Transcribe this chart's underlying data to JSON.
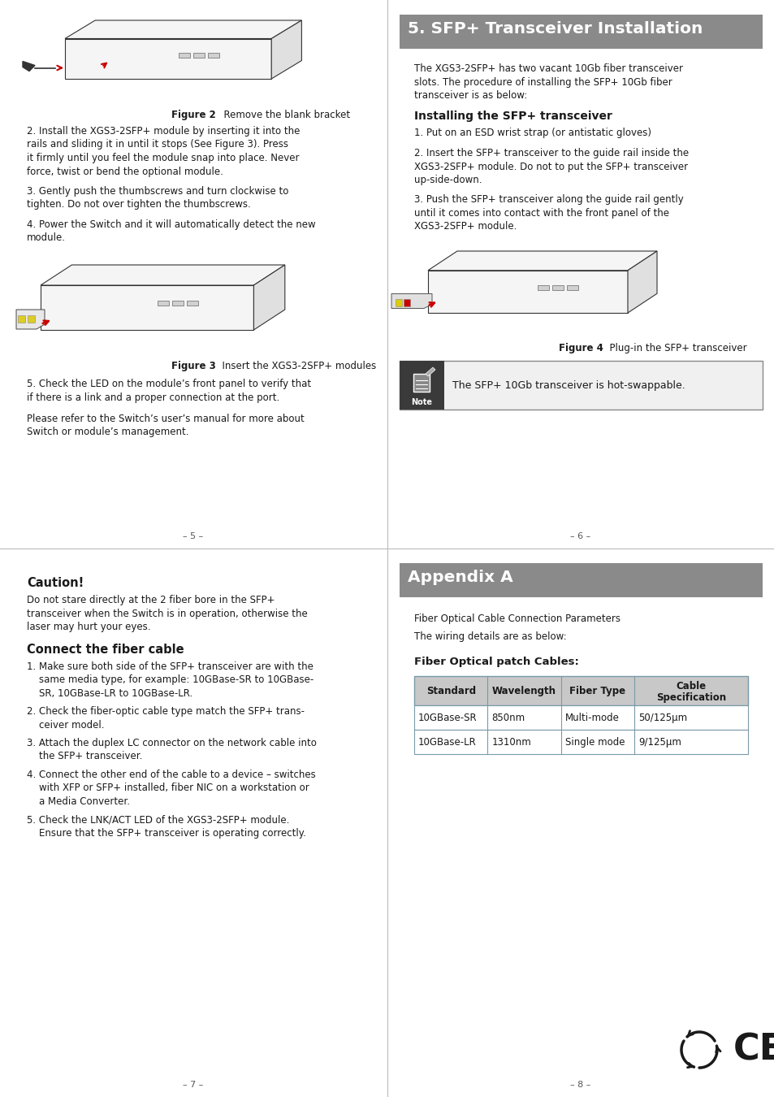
{
  "bg": "#ffffff",
  "text_color": "#1a1a1a",
  "gray_header_bg": "#8a8a8a",
  "gray_header_text": "#ffffff",
  "note_dark_bg": "#3a3a3a",
  "note_border": "#888888",
  "table_header_bg": "#c8c8c8",
  "table_border": "#7a9aaa",
  "divider_color": "#bbbbbb",
  "red_arrow": "#cc0000",
  "page5_content": {
    "fig2_caption_bold": "Figure 2",
    "fig2_caption_rest": "  Remove the blank bracket",
    "step2": "2. Install the XGS3-2SFP+ module by inserting it into the\n    rails and sliding it in until it stops (See Figure 3). Press\n    it firmly until you feel the module snap into place. Never\n    force, twist or bend the optional module.",
    "step3": "3. Gently push the thumbscrews and turn clockwise to\n    tighten. Do not over tighten the thumbscrews.",
    "step4": "4. Power the Switch and it will automatically detect the new\n    module.",
    "fig3_caption_bold": "Figure 3",
    "fig3_caption_rest": "  Insert the XGS3-2SFP+ modules",
    "step5": "5. Check the LED on the module’s front panel to verify that\n    if there is a link and a proper connection at the port.",
    "please_refer": "Please refer to the Switch’s user’s manual for more about\nSwitch or module’s management.",
    "page_num": "– 5 –"
  },
  "page6_content": {
    "section_title": "5. SFP+ Transceiver Installation",
    "intro": "The XGS3-2SFP+ has two vacant 10Gb fiber transceiver\nslots. The procedure of installing the SFP+ 10Gb fiber\ntransceiver is as below:",
    "sub_title": "Installing the SFP+ transceiver",
    "s1": "1. Put on an ESD wrist strap (or antistatic gloves)",
    "s2": "2. Insert the SFP+ transceiver to the guide rail inside the\n    XGS3-2SFP+ module. Do not to put the SFP+ transceiver\n    up-side-down.",
    "s3": "3. Push the SFP+ transceiver along the guide rail gently\n    until it comes into contact with the front panel of the\n    XGS3-2SFP+ module.",
    "fig4_caption_bold": "Figure 4",
    "fig4_caption_rest": "  Plug-in the SFP+ transceiver",
    "note_text": "The SFP+ 10Gb transceiver is hot-swappable.",
    "page_num": "– 6 –"
  },
  "page7_content": {
    "caution_title": "Caution!",
    "caution_text": "Do not stare directly at the 2 fiber bore in the SFP+\ntransceiver when the Switch is in operation, otherwise the\nlaser may hurt your eyes.",
    "connect_title": "Connect the fiber cable",
    "c1": "1. Make sure both side of the SFP+ transceiver are with the\n    same media type, for example: 10GBase-SR to 10GBase-\n    SR, 10GBase-LR to 10GBase-LR.",
    "c2": "2. Check the fiber-optic cable type match the SFP+ trans-\n    ceiver model.",
    "c3": "3. Attach the duplex LC connector on the network cable into\n    the SFP+ transceiver.",
    "c4": "4. Connect the other end of the cable to a device – switches\n    with XFP or SFP+ installed, fiber NIC on a workstation or\n    a Media Converter.",
    "c5": "5. Check the LNK/ACT LED of the XGS3-2SFP+ module.\n    Ensure that the SFP+ transceiver is operating correctly.",
    "page_num": "– 7 –"
  },
  "page8_content": {
    "appendix_title": "Appendix A",
    "para1": "Fiber Optical Cable Connection Parameters",
    "para2": "The wiring details are as below:",
    "fiber_title": "Fiber Optical patch Cables:",
    "tbl_h1": "Standard",
    "tbl_h2": "Wavelength",
    "tbl_h3": "Fiber Type",
    "tbl_h4": "Cable\nSpecification",
    "tbl_r1": [
      "10GBase-SR",
      "850nm",
      "Multi-mode",
      "50/125μm"
    ],
    "tbl_r2": [
      "10GBase-LR",
      "1310nm",
      "Single mode",
      "9/125μm"
    ],
    "page_num": "– 8 –"
  }
}
